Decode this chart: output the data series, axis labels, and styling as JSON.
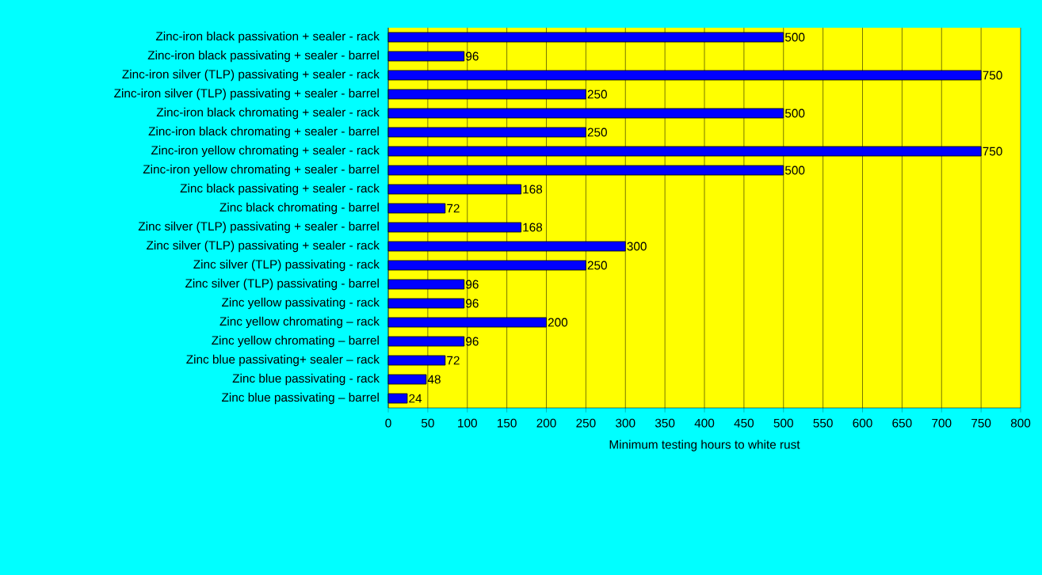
{
  "chart_data": {
    "type": "bar",
    "orientation": "horizontal",
    "xlabel": "Minimum testing hours to white rust",
    "categories": [
      "Zinc-iron black passivation + sealer - rack",
      "Zinc-iron black passivating + sealer - barrel",
      "Zinc-iron silver (TLP) passivating + sealer - rack",
      "Zinc-iron silver (TLP) passivating + sealer - barrel",
      "Zinc-iron black chromating + sealer - rack",
      "Zinc-iron black chromating + sealer - barrel",
      "Zinc-iron yellow chromating + sealer - rack",
      "Zinc-iron yellow chromating + sealer - barrel",
      "Zinc black passivating + sealer - rack",
      "Zinc black chromating - barrel",
      "Zinc silver (TLP) passivating + sealer  - barrel",
      "Zinc silver (TLP) passivating + sealer  - rack",
      "Zinc silver (TLP) passivating - rack",
      "Zinc silver (TLP) passivating - barrel",
      "Zinc yellow passivating - rack",
      "Zinc yellow chromating – rack",
      "Zinc yellow chromating – barrel",
      "Zinc blue passivating+ sealer – rack",
      "Zinc blue passivating - rack",
      "Zinc blue passivating – barrel"
    ],
    "values": [
      500,
      96,
      750,
      250,
      500,
      250,
      750,
      500,
      168,
      72,
      168,
      300,
      250,
      96,
      96,
      200,
      96,
      72,
      48,
      24
    ],
    "color": "#0000ff",
    "data_labels": true,
    "grid": "x",
    "xlim": [
      0,
      800
    ],
    "xticks": [
      0,
      50,
      100,
      150,
      200,
      250,
      300,
      350,
      400,
      450,
      500,
      550,
      600,
      650,
      700,
      750,
      800
    ]
  }
}
